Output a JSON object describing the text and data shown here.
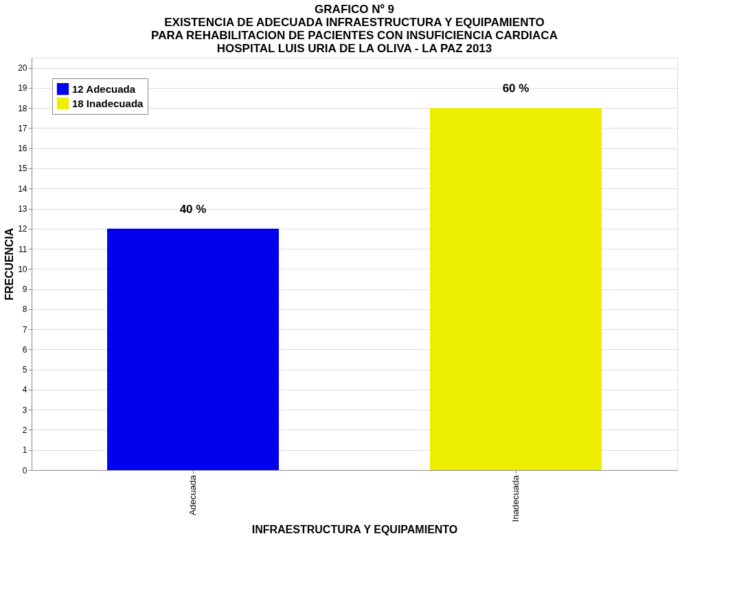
{
  "chart_data": {
    "type": "bar",
    "title": [
      "GRAFICO Nº 9",
      "EXISTENCIA DE ADECUADA INFRAESTRUCTURA Y EQUIPAMIENTO",
      "PARA REHABILITACION DE PACIENTES CON INSUFICIENCIA CARDIACA",
      "HOSPITAL LUIS URIA DE LA OLIVA - LA PAZ 2013"
    ],
    "xlabel": "INFRAESTRUCTURA Y EQUIPAMIENTO",
    "ylabel": "FRECUENCIA",
    "categories": [
      "Adecuada",
      "Inadecuada"
    ],
    "series": [
      {
        "name": "12 Adecuada",
        "color": "#0000ee",
        "values": [
          12,
          null
        ]
      },
      {
        "name": "18 Inadecuada",
        "color": "#eeee00",
        "values": [
          null,
          18
        ]
      }
    ],
    "annotations": [
      {
        "text": "40 %",
        "x": "Adecuada",
        "y": 12
      },
      {
        "text": "60 %",
        "x": "Inadecuada",
        "y": 18
      }
    ],
    "ylim": [
      0,
      20.5
    ],
    "yticks": [
      0,
      1,
      2,
      3,
      4,
      5,
      6,
      7,
      8,
      9,
      10,
      11,
      12,
      13,
      14,
      15,
      16,
      17,
      18,
      19,
      20
    ],
    "grid": "y",
    "legend": "top left"
  }
}
